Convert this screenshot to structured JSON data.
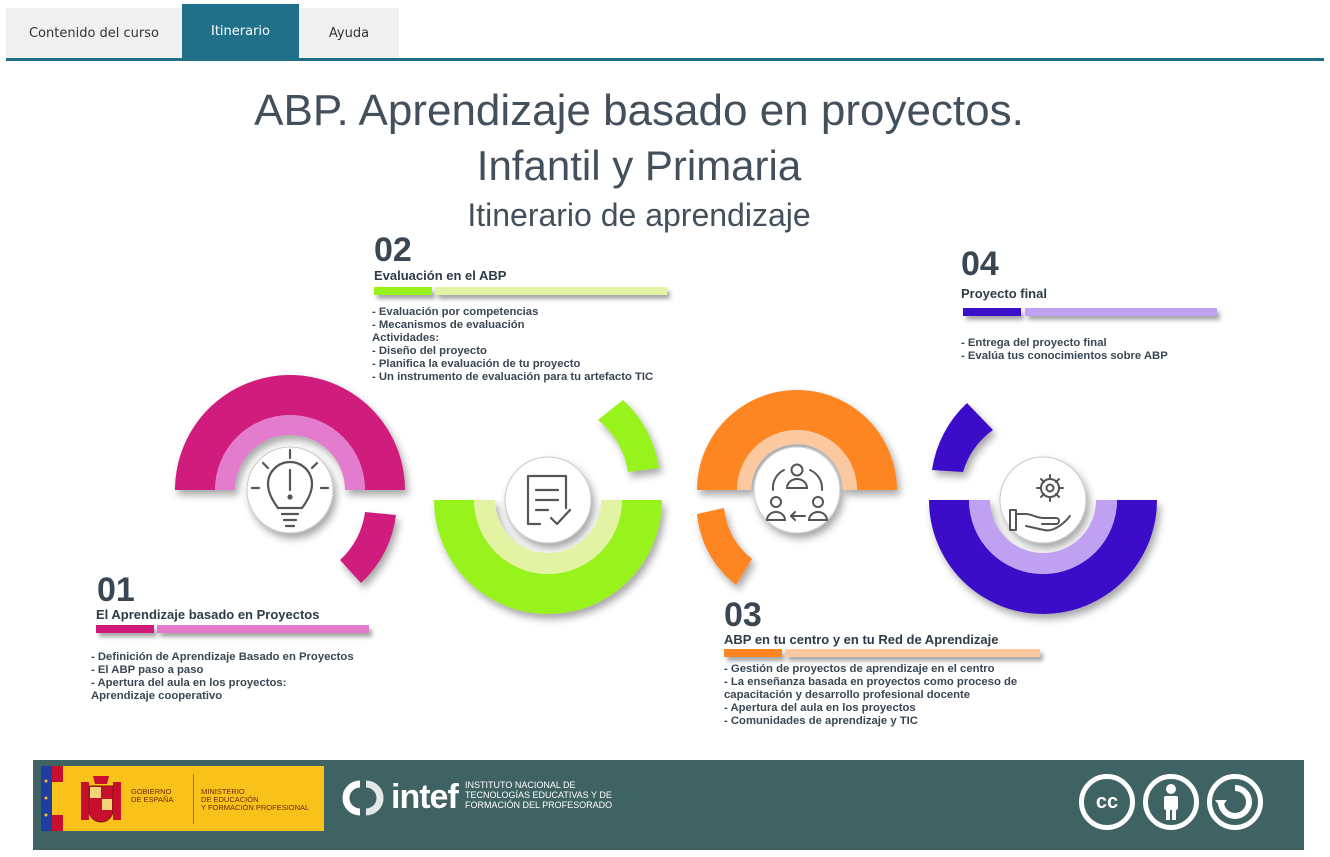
{
  "tabs": [
    {
      "label": "Contenido del curso",
      "active": false
    },
    {
      "label": "Itinerario",
      "active": true
    },
    {
      "label": "Ayuda",
      "active": false
    }
  ],
  "header": {
    "title_line1": "ABP. Aprendizaje basado en proyectos.",
    "title_line2": "Infantil y Primaria",
    "subtitle": "Itinerario de aprendizaje"
  },
  "steps": [
    {
      "number": "01",
      "title": "El Aprendizaje basado en Proyectos",
      "items": [
        "- Definición de Aprendizaje Basado en Proyectos",
        "- El ABP paso a paso",
        "- Apertura del aula en los proyectos:",
        "Aprendizaje cooperativo"
      ],
      "color": "#d01a7b",
      "light_color": "#e37bcd",
      "icon": "lightbulb-icon"
    },
    {
      "number": "02",
      "title": "Evaluación en el ABP",
      "items": [
        "- Evaluación por competencias",
        "- Mecanismos de evaluación",
        "Actividades:",
        "- Diseño del proyecto",
        "- Planifica la evaluación de tu proyecto",
        "- Un instrumento de evaluación para tu artefacto TIC"
      ],
      "color": "#98f21b",
      "light_color": "#e3f3a4",
      "icon": "checklist-icon"
    },
    {
      "number": "03",
      "title": "ABP en tu centro y en tu Red de Aprendizaje",
      "items": [
        "- Gestión de proyectos de aprendizaje en el centro",
        "- La enseñanza basada en proyectos como proceso de",
        "capacitación y desarrollo profesional docente",
        "- Apertura del aula en los proyectos",
        "- Comunidades de aprendizaje y TIC"
      ],
      "color": "#fd8522",
      "light_color": "#fcc89f",
      "icon": "people-exchange-icon"
    },
    {
      "number": "04",
      "title": "Proyecto final",
      "items": [
        "- Entrega del proyecto final",
        "- Evalúa tus conocimientos sobre ABP"
      ],
      "color": "#3b10c8",
      "light_color": "#c0a0f0",
      "icon": "hand-gear-icon"
    }
  ],
  "footer": {
    "gov_text": [
      "GOBIERNO",
      "DE ESPAÑA"
    ],
    "ministry_text": [
      "MINISTERIO",
      "DE EDUCACIÓN",
      "Y FORMACIÓN PROFESIONAL"
    ],
    "intef_logo": "intef",
    "intef_text": [
      "INSTITUTO NACIONAL DE",
      "TECNOLOGÍAS EDUCATIVAS Y DE",
      "FORMACIÓN DEL PROFESORADO"
    ],
    "license_icons": [
      "cc-icon",
      "by-icon",
      "sa-icon"
    ],
    "cc_label": "cc"
  }
}
